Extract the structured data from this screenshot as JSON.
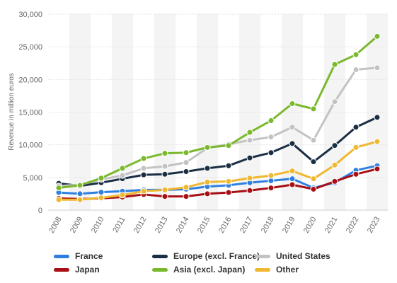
{
  "chart_data": {
    "type": "line",
    "x": [
      "2008",
      "2009",
      "2010",
      "2011",
      "2012",
      "2013",
      "2014",
      "2015",
      "2016",
      "2017",
      "2018",
      "2019",
      "2020",
      "2021",
      "2022",
      "2023"
    ],
    "ylabel": "Revenue in million euros",
    "ylim": [
      0,
      30000
    ],
    "yticks": [
      0,
      5000,
      10000,
      15000,
      20000,
      25000,
      30000
    ],
    "ytick_labels": [
      "0",
      "5,000",
      "10,000",
      "15,000",
      "20,000",
      "25,000",
      "30,000"
    ],
    "grid": true,
    "legend_position": "bottom",
    "series": [
      {
        "name": "France",
        "color": "#2e7fe0",
        "values": [
          2700,
          2500,
          2750,
          2900,
          3100,
          3100,
          3200,
          3600,
          3800,
          4200,
          4500,
          4800,
          3400,
          4200,
          6100,
          6800
        ]
      },
      {
        "name": "Europe (excl. France)",
        "color": "#1a2e44",
        "values": [
          4100,
          3700,
          4200,
          4800,
          5400,
          5500,
          5900,
          6400,
          6800,
          8000,
          8800,
          10200,
          7400,
          9900,
          12700,
          14200
        ]
      },
      {
        "name": "United States",
        "color": "#c3c3c3",
        "values": [
          3700,
          3900,
          4700,
          5300,
          6400,
          6700,
          7300,
          9500,
          10100,
          10700,
          11200,
          12700,
          10700,
          16600,
          21500,
          21800
        ]
      },
      {
        "name": "Japan",
        "color": "#a70f14",
        "values": [
          1800,
          1700,
          1800,
          2000,
          2400,
          2100,
          2100,
          2500,
          2700,
          3000,
          3400,
          3900,
          3200,
          4400,
          5500,
          6300
        ]
      },
      {
        "name": "Asia (excl. Japan)",
        "color": "#7ab92c",
        "values": [
          3400,
          3800,
          4900,
          6400,
          7900,
          8700,
          8800,
          9600,
          9900,
          11900,
          13700,
          16300,
          15500,
          22300,
          23800,
          26600
        ]
      },
      {
        "name": "Other",
        "color": "#f0b830",
        "values": [
          1600,
          1600,
          1900,
          2300,
          2900,
          3100,
          3500,
          4300,
          4400,
          4900,
          5300,
          6000,
          4800,
          6900,
          9600,
          10500
        ]
      }
    ]
  }
}
